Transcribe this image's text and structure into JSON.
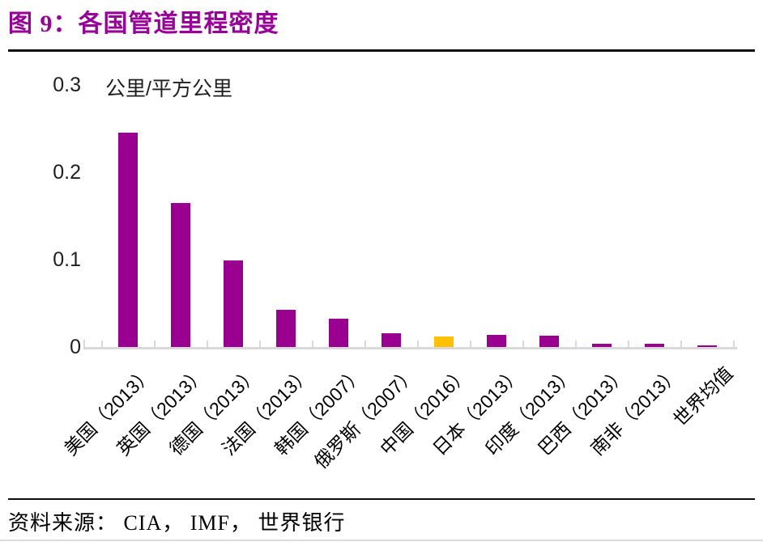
{
  "page": {
    "source_line": "资料来源： CIA， IMF， 世界银行"
  },
  "chart_data": {
    "type": "bar",
    "title": "图 9：各国管道里程密度",
    "unit_label": "公里/平方公里",
    "categories": [
      "美国（2013）",
      "英国（2013）",
      "德国（2013）",
      "法国（2013）",
      "韩国（2007）",
      "俄罗斯（2007）",
      "中国（2016）",
      "日本（2013）",
      "印度（2013）",
      "巴西（2013）",
      "南非（2013）",
      "世界均值"
    ],
    "values": [
      0.245,
      0.165,
      0.099,
      0.043,
      0.032,
      0.016,
      0.012,
      0.014,
      0.013,
      0.004,
      0.004,
      0.002
    ],
    "highlight_index": 6,
    "yticks": [
      "0",
      "0.1",
      "0.2",
      "0.3"
    ],
    "ytick_values": [
      0,
      0.1,
      0.2,
      0.3
    ],
    "ylim": [
      0,
      0.3
    ],
    "grid": false,
    "legend_position": "none",
    "colors": {
      "bar": "#99008F",
      "highlight": "#FFC000",
      "axis": "#D9D9D9",
      "title": "#990099",
      "text": "#1F1F1F"
    }
  }
}
